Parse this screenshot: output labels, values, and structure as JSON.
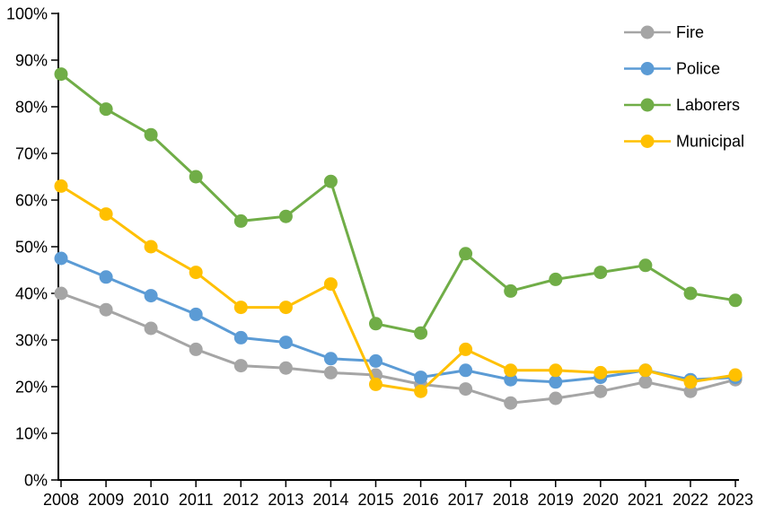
{
  "chart_data": {
    "type": "line",
    "title": "",
    "xlabel": "",
    "ylabel": "",
    "x": [
      "2008",
      "2009",
      "2010",
      "2011",
      "2012",
      "2013",
      "2014",
      "2015",
      "2016",
      "2017",
      "2018",
      "2019",
      "2020",
      "2021",
      "2022",
      "2023"
    ],
    "ylim": [
      0,
      100
    ],
    "ytick_step": 10,
    "ytick_labels": [
      "0%",
      "10%",
      "20%",
      "30%",
      "40%",
      "50%",
      "60%",
      "70%",
      "80%",
      "90%",
      "100%"
    ],
    "grid": false,
    "legend_position": "top-right",
    "axis_color": "#000000",
    "series": [
      {
        "name": "Fire",
        "color": "#A5A5A5",
        "values": [
          40,
          36.5,
          32.5,
          28,
          24.5,
          24,
          23,
          22.5,
          20.5,
          19.5,
          16.5,
          17.5,
          19,
          21,
          19,
          21.5
        ]
      },
      {
        "name": "Police",
        "color": "#5B9BD5",
        "values": [
          47.5,
          43.5,
          39.5,
          35.5,
          30.5,
          29.5,
          26,
          25.5,
          22,
          23.5,
          21.5,
          21,
          22,
          23.5,
          21.5,
          22
        ]
      },
      {
        "name": "Laborers",
        "color": "#70AD47",
        "values": [
          87,
          79.5,
          74,
          65,
          55.5,
          56.5,
          64,
          33.5,
          31.5,
          48.5,
          40.5,
          43,
          44.5,
          46,
          40,
          38.5
        ]
      },
      {
        "name": "Municipal",
        "color": "#FFC000",
        "values": [
          63,
          57,
          50,
          44.5,
          37,
          37,
          42,
          20.5,
          19,
          28,
          23.5,
          23.5,
          23,
          23.5,
          21,
          22.5
        ]
      }
    ]
  }
}
